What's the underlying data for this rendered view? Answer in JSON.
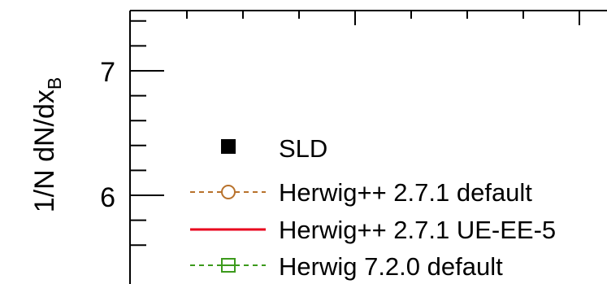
{
  "chart_data": {
    "type": "line",
    "title": "",
    "xlabel": "",
    "ylabel": "1/N dN/dx",
    "ylabel_subscript": "B",
    "ylim": [
      5.43,
      7.46
    ],
    "y_major_ticks": [
      6,
      7
    ],
    "y_tick_labels": [
      "6",
      "7"
    ],
    "y_minor_step": 0.2,
    "grid": false,
    "legend": {
      "placement": "bottom-left",
      "entries": [
        {
          "label": "SLD",
          "marker": "filled-square",
          "color": "#000000",
          "line": "none"
        },
        {
          "label": "Herwig++ 2.7.1 default",
          "marker": "open-circle",
          "color": "#b8722c",
          "line": "dashed"
        },
        {
          "label": "Herwig++ 2.7.1 UE-EE-5",
          "marker": "none",
          "color": "#e8001c",
          "line": "solid"
        },
        {
          "label": "Herwig 7.2.0 default",
          "marker": "open-square",
          "color": "#3c9a1c",
          "line": "dashed"
        }
      ]
    },
    "series": []
  }
}
